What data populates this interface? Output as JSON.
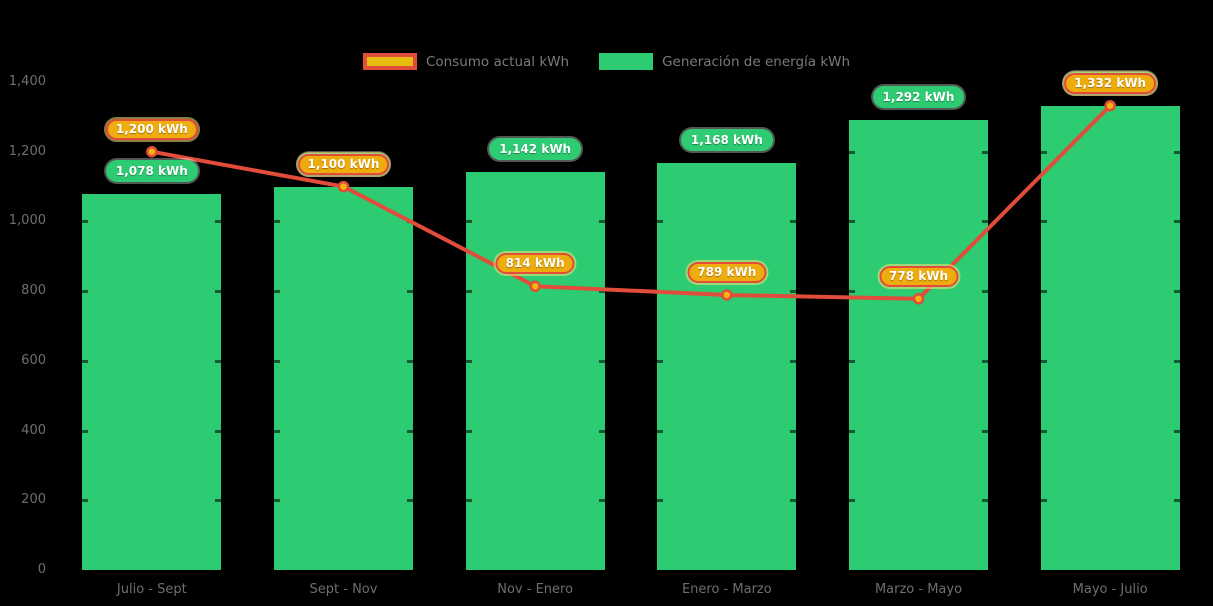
{
  "colors": {
    "background": "#000000",
    "bar_green": "#2DCB72",
    "line_red": "#E24C3B",
    "pill_amber_fill": "#EEAC0D",
    "legend_swatch_yellow": "#E7BB10",
    "marker_fill": "#F6B40E",
    "axis_text": "#6E6E6E",
    "legend_text": "#7A7A7A",
    "pill_text": "#FFFFFF"
  },
  "legend": {
    "items": [
      {
        "label": "Consumo actual kWh"
      },
      {
        "label": "Generación de energía kWh"
      }
    ]
  },
  "chart_data": {
    "type": "bar",
    "categories": [
      "Julio - Sept",
      "Sept - Nov",
      "Nov - Enero",
      "Enero - Marzo",
      "Marzo - Mayo",
      "Mayo - Julio"
    ],
    "series": [
      {
        "name": "Generación de energía kWh",
        "type": "bar",
        "color": "#2DCB72",
        "values": [
          1078,
          1100,
          1142,
          1168,
          1292,
          1332
        ],
        "labels": [
          "1,078 kWh",
          "1,100 kWh",
          "1,142 kWh",
          "1,168 kWh",
          "1,292 kWh",
          "1,332 kWh"
        ]
      },
      {
        "name": "Consumo actual kWh",
        "type": "line",
        "color": "#E24C3B",
        "values": [
          1200,
          1100,
          814,
          789,
          778,
          1332
        ],
        "labels": [
          "1,200 kWh",
          "1,100 kWh",
          "814 kWh",
          "789 kWh",
          "778 kWh",
          "1,332 kWh"
        ]
      }
    ],
    "title": "",
    "xlabel": "",
    "ylabel": "",
    "ylim": [
      0,
      1400
    ],
    "yticks": [
      0,
      200,
      400,
      600,
      800,
      1000,
      1200,
      1400
    ],
    "ytick_labels": [
      "0",
      "200",
      "400",
      "600",
      "800",
      "1,000",
      "1,200",
      "1,400"
    ],
    "legend_position": "top",
    "grid": false
  }
}
